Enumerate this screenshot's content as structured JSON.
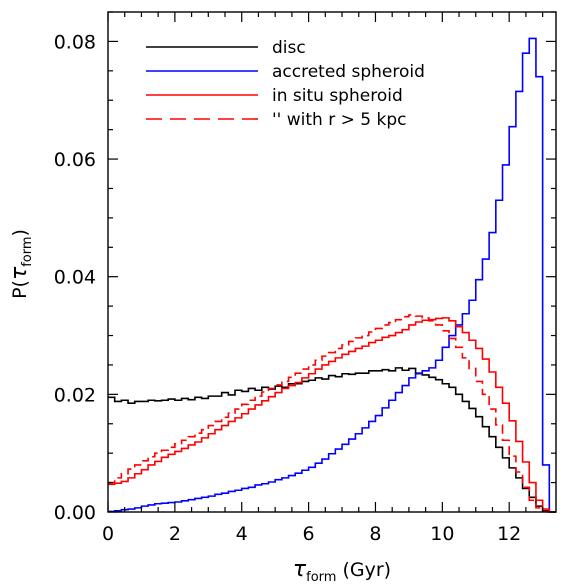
{
  "chart_data": {
    "type": "line",
    "step": true,
    "x_edges": [
      0.0,
      0.2,
      0.4,
      0.6,
      0.8,
      1.0,
      1.2,
      1.4,
      1.6,
      1.8,
      2.0,
      2.2,
      2.4,
      2.6,
      2.8,
      3.0,
      3.2,
      3.4,
      3.6,
      3.8,
      4.0,
      4.2,
      4.4,
      4.6,
      4.8,
      5.0,
      5.2,
      5.4,
      5.6,
      5.8,
      6.0,
      6.2,
      6.4,
      6.6,
      6.8,
      7.0,
      7.2,
      7.4,
      7.6,
      7.8,
      8.0,
      8.2,
      8.4,
      8.6,
      8.8,
      9.0,
      9.2,
      9.4,
      9.6,
      9.8,
      10.0,
      10.2,
      10.4,
      10.6,
      10.8,
      11.0,
      11.2,
      11.4,
      11.6,
      11.8,
      12.0,
      12.2,
      12.4,
      12.6,
      12.8,
      13.0,
      13.2,
      13.4
    ],
    "series": [
      {
        "name": "disc",
        "color": "#000000",
        "dash": "solid",
        "values": [
          0.0195,
          0.0188,
          0.019,
          0.0185,
          0.0188,
          0.0188,
          0.019,
          0.0189,
          0.019,
          0.0192,
          0.019,
          0.0193,
          0.0191,
          0.0195,
          0.0193,
          0.0197,
          0.0197,
          0.0203,
          0.0199,
          0.0207,
          0.0205,
          0.021,
          0.0207,
          0.0212,
          0.0209,
          0.0214,
          0.0212,
          0.0218,
          0.0218,
          0.0222,
          0.0224,
          0.0228,
          0.0226,
          0.0232,
          0.023,
          0.0235,
          0.0234,
          0.0236,
          0.0236,
          0.024,
          0.024,
          0.0242,
          0.024,
          0.0245,
          0.0241,
          0.0244,
          0.0236,
          0.0233,
          0.0229,
          0.0225,
          0.0218,
          0.0212,
          0.02,
          0.0188,
          0.0176,
          0.0162,
          0.0145,
          0.0128,
          0.011,
          0.0092,
          0.0075,
          0.0058,
          0.004,
          0.0025,
          0.001,
          0.0002,
          0.0
        ]
      },
      {
        "name": "accreted spheroid",
        "color": "#0000ff",
        "dash": "solid",
        "values": [
          0.0001,
          0.0002,
          0.0004,
          0.0005,
          0.0007,
          0.001,
          0.0012,
          0.0014,
          0.0015,
          0.0016,
          0.0017,
          0.0019,
          0.0021,
          0.0023,
          0.0025,
          0.0027,
          0.003,
          0.0032,
          0.0035,
          0.0037,
          0.004,
          0.0042,
          0.0046,
          0.0048,
          0.0051,
          0.0055,
          0.0058,
          0.0062,
          0.0066,
          0.0071,
          0.0076,
          0.0083,
          0.009,
          0.0099,
          0.0107,
          0.0115,
          0.0124,
          0.0133,
          0.0143,
          0.0154,
          0.0164,
          0.0177,
          0.019,
          0.0203,
          0.0215,
          0.0228,
          0.0235,
          0.024,
          0.0245,
          0.0258,
          0.028,
          0.03,
          0.0318,
          0.0337,
          0.036,
          0.0395,
          0.043,
          0.0475,
          0.053,
          0.059,
          0.0655,
          0.0715,
          0.078,
          0.0805,
          0.074,
          0.008,
          0.0
        ]
      },
      {
        "name": "in situ spheroid",
        "color": "#ff0000",
        "dash": "solid",
        "values": [
          0.0047,
          0.0049,
          0.0052,
          0.0058,
          0.0065,
          0.0072,
          0.008,
          0.0086,
          0.0093,
          0.0098,
          0.0103,
          0.0108,
          0.0114,
          0.0119,
          0.0126,
          0.0133,
          0.014,
          0.0147,
          0.0154,
          0.016,
          0.0167,
          0.0175,
          0.0182,
          0.0189,
          0.0196,
          0.0203,
          0.021,
          0.0215,
          0.022,
          0.0228,
          0.0235,
          0.0243,
          0.025,
          0.0256,
          0.0262,
          0.0268,
          0.0273,
          0.0278,
          0.0282,
          0.0288,
          0.0292,
          0.0297,
          0.03,
          0.0305,
          0.031,
          0.0318,
          0.0323,
          0.0326,
          0.0327,
          0.0329,
          0.033,
          0.0325,
          0.0315,
          0.0305,
          0.0292,
          0.0278,
          0.026,
          0.0238,
          0.0212,
          0.0185,
          0.0155,
          0.012,
          0.0085,
          0.005,
          0.002,
          0.0005,
          0.0
        ]
      },
      {
        "name": "'' with r > 5 kpc",
        "color": "#ff0000",
        "dash": "dashed",
        "values": [
          0.005,
          0.0058,
          0.0065,
          0.0073,
          0.008,
          0.0087,
          0.0094,
          0.01,
          0.0105,
          0.011,
          0.0116,
          0.0122,
          0.0128,
          0.0134,
          0.014,
          0.0147,
          0.0154,
          0.0161,
          0.0168,
          0.0175,
          0.0183,
          0.019,
          0.0197,
          0.0204,
          0.021,
          0.0216,
          0.0222,
          0.0229,
          0.0236,
          0.0243,
          0.025,
          0.0258,
          0.0265,
          0.0271,
          0.0278,
          0.0284,
          0.029,
          0.0296,
          0.03,
          0.0306,
          0.0312,
          0.0318,
          0.0322,
          0.0327,
          0.0332,
          0.0335,
          0.0333,
          0.033,
          0.0325,
          0.0318,
          0.0308,
          0.0295,
          0.028,
          0.0262,
          0.0244,
          0.0222,
          0.02,
          0.0175,
          0.0148,
          0.0122,
          0.0095,
          0.0068,
          0.0042,
          0.002,
          0.0007,
          0.0001,
          0.0
        ]
      }
    ],
    "xlim": [
      0,
      13.4
    ],
    "ylim": [
      0,
      0.085
    ],
    "x_ticks": [
      0,
      2,
      4,
      6,
      8,
      10,
      12
    ],
    "x_tick_labels": [
      "0",
      "2",
      "4",
      "6",
      "8",
      "10",
      "12"
    ],
    "y_ticks": [
      0,
      0.02,
      0.04,
      0.06,
      0.08
    ],
    "y_tick_labels": [
      "0.00",
      "0.02",
      "0.04",
      "0.06",
      "0.08"
    ],
    "xlabel_symbol": "τ",
    "xlabel_subscript": "form",
    "xlabel_suffix": " (Gyr)",
    "ylabel_prefix": "P(",
    "ylabel_symbol": "τ",
    "ylabel_subscript": "form",
    "ylabel_suffix": ")",
    "grid": false,
    "legend_position": "top-left"
  }
}
